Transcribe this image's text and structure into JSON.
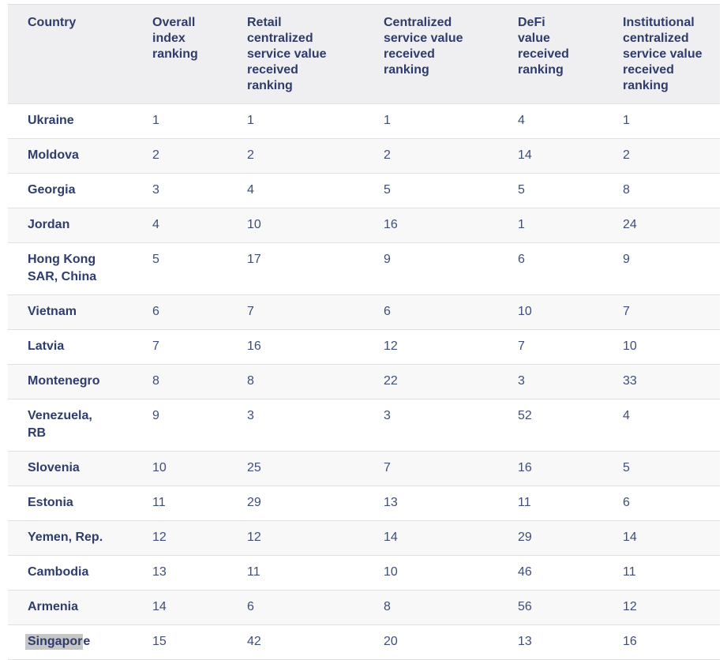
{
  "chart_data": {
    "type": "table",
    "columns": [
      "Country",
      "Overall index ranking",
      "Retail centralized service value received ranking",
      "Centralized service value received ranking",
      "DeFi value received ranking",
      "Institutional centralized service value received ranking"
    ],
    "rows": [
      [
        "Ukraine",
        1,
        1,
        1,
        4,
        1
      ],
      [
        "Moldova",
        2,
        2,
        2,
        14,
        2
      ],
      [
        "Georgia",
        3,
        4,
        5,
        5,
        8
      ],
      [
        "Jordan",
        4,
        10,
        16,
        1,
        24
      ],
      [
        "Hong Kong SAR, China",
        5,
        17,
        9,
        6,
        9
      ],
      [
        "Vietnam",
        6,
        7,
        6,
        10,
        7
      ],
      [
        "Latvia",
        7,
        16,
        12,
        7,
        10
      ],
      [
        "Montenegro",
        8,
        8,
        22,
        3,
        33
      ],
      [
        "Venezuela, RB",
        9,
        3,
        3,
        52,
        4
      ],
      [
        "Slovenia",
        10,
        25,
        7,
        16,
        5
      ],
      [
        "Estonia",
        11,
        29,
        13,
        11,
        6
      ],
      [
        "Yemen, Rep.",
        12,
        12,
        14,
        29,
        14
      ],
      [
        "Cambodia",
        13,
        11,
        10,
        46,
        11
      ],
      [
        "Armenia",
        14,
        6,
        8,
        56,
        12
      ],
      [
        "Singapore",
        15,
        42,
        20,
        13,
        16
      ]
    ]
  },
  "selection": {
    "row_country": "Singapore",
    "highlighted_text": "Singapor",
    "unhighlighted_suffix": "e"
  },
  "colors": {
    "header_text": "#2e3d6b",
    "cell_text": "#3e4e76",
    "header_bg": "#efeef0",
    "row_bg": "#ffffff",
    "row_alt_bg": "#f8f8f9",
    "border": "#e0e0e0",
    "selection_highlight": "#c6c6c6"
  }
}
